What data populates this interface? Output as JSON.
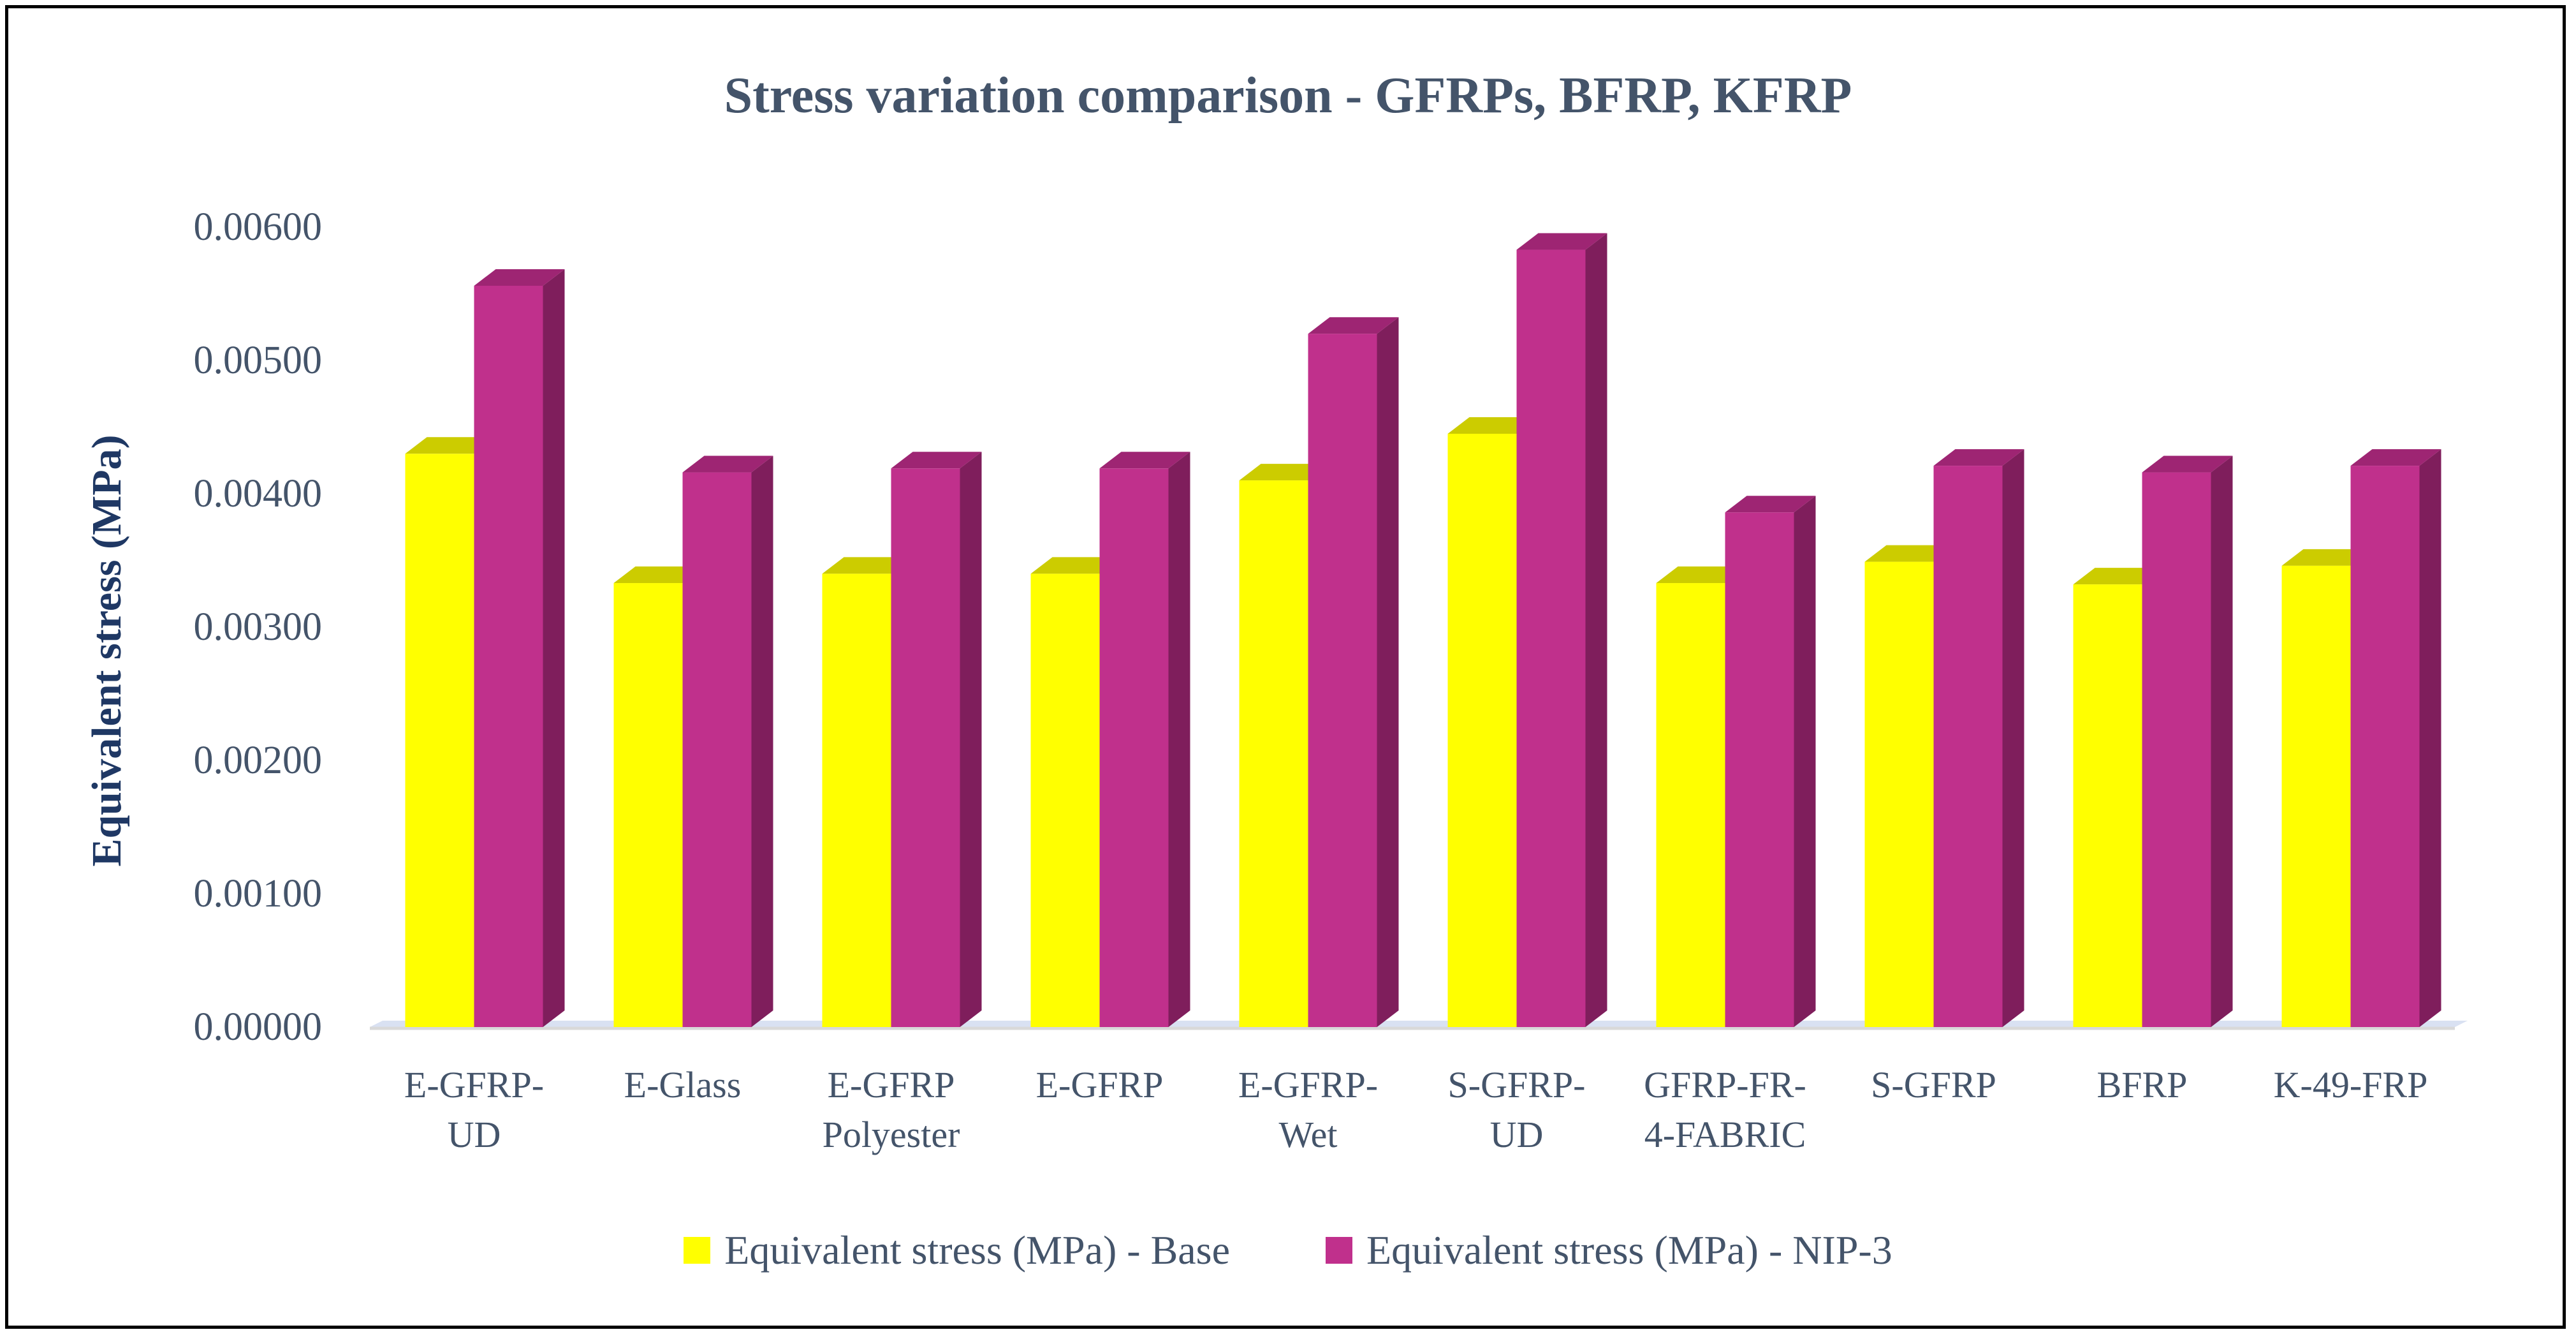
{
  "chart_data": {
    "type": "bar",
    "title": "Stress variation comparison - GFRPs, BFRP, KFRP",
    "xlabel": "",
    "ylabel": "Equivalent stress (MPa)",
    "ylim": [
      0,
      0.006
    ],
    "yticks": [
      "0.00000",
      "0.00100",
      "0.00200",
      "0.00300",
      "0.00400",
      "0.00500",
      "0.00600"
    ],
    "categories": [
      [
        "E-GFRP-",
        "UD"
      ],
      [
        "E-Glass"
      ],
      [
        "E-GFRP",
        "Polyester"
      ],
      [
        "E-GFRP"
      ],
      [
        "E-GFRP-",
        "Wet"
      ],
      [
        "S-GFRP-",
        "UD"
      ],
      [
        "GFRP-FR-",
        "4-FABRIC"
      ],
      [
        "S-GFRP"
      ],
      [
        "BFRP"
      ],
      [
        "K-49-FRP"
      ]
    ],
    "series": [
      {
        "name": "Equivalent stress (MPa) - Base",
        "color": "#ffff00",
        "top_color": "#cccc00",
        "side_color": "#b3b300",
        "values": [
          0.0043,
          0.00333,
          0.0034,
          0.0034,
          0.0041,
          0.00445,
          0.00333,
          0.00349,
          0.00332,
          0.00346
        ]
      },
      {
        "name": "Equivalent stress (MPa) - NIP-3",
        "color": "#c0308c",
        "top_color": "#9e2573",
        "side_color": "#7f1e5c",
        "values": [
          0.00556,
          0.00416,
          0.00419,
          0.00419,
          0.0052,
          0.00583,
          0.00386,
          0.00421,
          0.00416,
          0.00421
        ]
      }
    ],
    "legend_position": "bottom"
  }
}
